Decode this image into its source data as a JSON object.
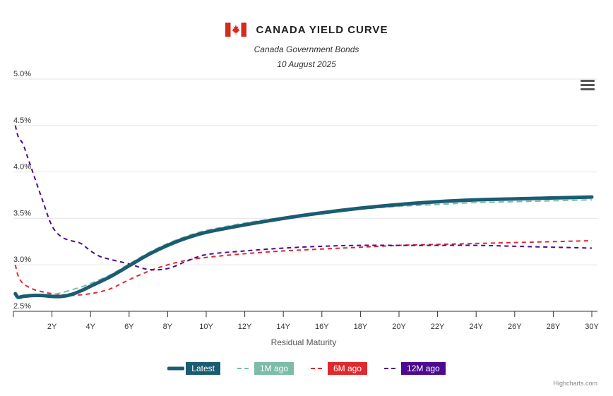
{
  "header": {
    "title": "CANADA YIELD CURVE",
    "subtitle": "Canada Government Bonds",
    "date": "10 August 2025"
  },
  "credits": "Highcharts.com",
  "chart_data": {
    "type": "line",
    "title": "CANADA YIELD CURVE",
    "subtitle": "Canada Government Bonds",
    "date": "10 August 2025",
    "xlabel": "Residual Maturity",
    "ylabel": "",
    "xlim": [
      0,
      30
    ],
    "ylim": [
      2.5,
      5.0
    ],
    "xticks": [
      2,
      4,
      6,
      8,
      10,
      12,
      14,
      16,
      18,
      20,
      22,
      24,
      26,
      28,
      30
    ],
    "xtick_labels": [
      "2Y",
      "4Y",
      "6Y",
      "8Y",
      "10Y",
      "12Y",
      "14Y",
      "16Y",
      "18Y",
      "20Y",
      "22Y",
      "24Y",
      "26Y",
      "28Y",
      "30Y"
    ],
    "yticks": [
      2.5,
      3.0,
      3.5,
      4.0,
      4.5,
      5.0
    ],
    "ytick_labels": [
      "2.5%",
      "3.0%",
      "3.5%",
      "4.0%",
      "4.5%",
      "5.0%"
    ],
    "grid": "horizontal",
    "legend_position": "bottom-center",
    "series": [
      {
        "name": "Latest",
        "color": "#1a5c72",
        "dash": "solid",
        "points": [
          [
            0.1,
            2.69
          ],
          [
            0.25,
            2.65
          ],
          [
            0.5,
            2.66
          ],
          [
            1,
            2.67
          ],
          [
            1.5,
            2.67
          ],
          [
            2,
            2.66
          ],
          [
            2.5,
            2.66
          ],
          [
            3,
            2.68
          ],
          [
            3.5,
            2.72
          ],
          [
            4,
            2.77
          ],
          [
            5,
            2.87
          ],
          [
            6,
            2.99
          ],
          [
            7,
            3.11
          ],
          [
            8,
            3.21
          ],
          [
            9,
            3.29
          ],
          [
            10,
            3.35
          ],
          [
            12,
            3.43
          ],
          [
            14,
            3.5
          ],
          [
            16,
            3.56
          ],
          [
            18,
            3.61
          ],
          [
            20,
            3.65
          ],
          [
            22,
            3.68
          ],
          [
            24,
            3.7
          ],
          [
            26,
            3.71
          ],
          [
            28,
            3.72
          ],
          [
            30,
            3.73
          ]
        ]
      },
      {
        "name": "1M ago",
        "color": "#7dbca7",
        "dash": "dashed",
        "points": [
          [
            0.25,
            2.66
          ],
          [
            0.5,
            2.67
          ],
          [
            1,
            2.68
          ],
          [
            1.5,
            2.68
          ],
          [
            2,
            2.68
          ],
          [
            2.5,
            2.7
          ],
          [
            3,
            2.73
          ],
          [
            3.5,
            2.76
          ],
          [
            4,
            2.8
          ],
          [
            5,
            2.89
          ],
          [
            6,
            3.01
          ],
          [
            7,
            3.13
          ],
          [
            8,
            3.23
          ],
          [
            9,
            3.31
          ],
          [
            10,
            3.37
          ],
          [
            12,
            3.45
          ],
          [
            14,
            3.51
          ],
          [
            16,
            3.56
          ],
          [
            18,
            3.6
          ],
          [
            20,
            3.63
          ],
          [
            22,
            3.65
          ],
          [
            24,
            3.67
          ],
          [
            26,
            3.68
          ],
          [
            28,
            3.69
          ],
          [
            30,
            3.7
          ]
        ]
      },
      {
        "name": "6M ago",
        "color": "#e0282d",
        "dash": "dashed",
        "points": [
          [
            0.1,
            3.0
          ],
          [
            0.25,
            2.88
          ],
          [
            0.5,
            2.8
          ],
          [
            1,
            2.74
          ],
          [
            1.5,
            2.71
          ],
          [
            2,
            2.69
          ],
          [
            2.5,
            2.68
          ],
          [
            3,
            2.67
          ],
          [
            4,
            2.69
          ],
          [
            5,
            2.74
          ],
          [
            6,
            2.84
          ],
          [
            7,
            2.93
          ],
          [
            8,
            3.0
          ],
          [
            9,
            3.05
          ],
          [
            10,
            3.08
          ],
          [
            12,
            3.12
          ],
          [
            14,
            3.15
          ],
          [
            16,
            3.17
          ],
          [
            18,
            3.19
          ],
          [
            20,
            3.21
          ],
          [
            22,
            3.22
          ],
          [
            24,
            3.23
          ],
          [
            26,
            3.24
          ],
          [
            28,
            3.25
          ],
          [
            30,
            3.26
          ]
        ]
      },
      {
        "name": "12M ago",
        "color": "#4b0a91",
        "dash": "dashed",
        "points": [
          [
            0.1,
            4.5
          ],
          [
            0.25,
            4.38
          ],
          [
            0.5,
            4.3
          ],
          [
            0.75,
            4.15
          ],
          [
            1,
            4.0
          ],
          [
            1.5,
            3.7
          ],
          [
            2,
            3.42
          ],
          [
            2.5,
            3.3
          ],
          [
            3,
            3.26
          ],
          [
            3.5,
            3.23
          ],
          [
            4,
            3.15
          ],
          [
            4.5,
            3.09
          ],
          [
            5,
            3.06
          ],
          [
            6,
            3.01
          ],
          [
            7,
            2.95
          ],
          [
            8,
            2.96
          ],
          [
            9,
            3.04
          ],
          [
            10,
            3.11
          ],
          [
            12,
            3.15
          ],
          [
            14,
            3.18
          ],
          [
            16,
            3.2
          ],
          [
            18,
            3.21
          ],
          [
            20,
            3.21
          ],
          [
            22,
            3.21
          ],
          [
            24,
            3.21
          ],
          [
            26,
            3.2
          ],
          [
            28,
            3.19
          ],
          [
            30,
            3.18
          ]
        ]
      }
    ]
  }
}
